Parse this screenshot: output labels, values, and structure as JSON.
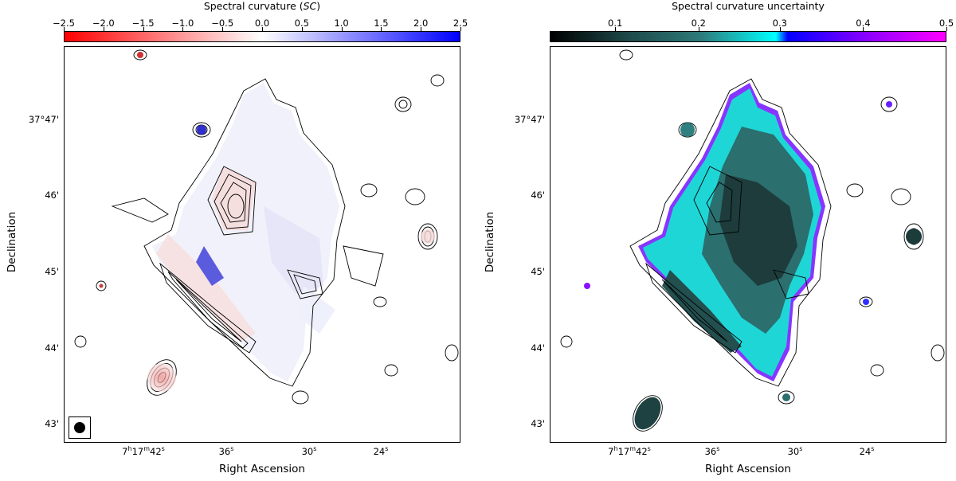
{
  "panels": [
    {
      "colorbar": {
        "title": "Spectral curvature (",
        "title_italic": "SC",
        "title_end": ")",
        "ticks": [
          "−2.5",
          "−2.0",
          "−1.5",
          "−1.0",
          "−0.5",
          "0.0",
          "0.5",
          "1.0",
          "1.5",
          "2.0",
          "2.5"
        ],
        "colormap": "bwr"
      },
      "x_ticks": [
        "7h17m42s",
        "36s",
        "30s",
        "24s"
      ],
      "y_ticks": [
        "37°47'",
        "46'",
        "45'",
        "44'",
        "43'"
      ],
      "xlabel": "Right Ascension",
      "ylabel": "Declination",
      "has_beam": true
    },
    {
      "colorbar": {
        "title": "Spectral curvature uncertainty",
        "ticks": [
          "0.1",
          "0.2",
          "0.3",
          "0.4",
          "0.5"
        ],
        "colormap": "cubehelix-cyan-magenta"
      },
      "x_ticks": [
        "7h17m42s",
        "36s",
        "30s",
        "24s"
      ],
      "y_ticks": [
        "37°47'",
        "46'",
        "45'",
        "44'",
        "43'"
      ],
      "xlabel": "Right Ascension",
      "ylabel": "Declination",
      "has_beam": false
    }
  ],
  "colors": {
    "red": "#ff0000",
    "blue": "#0000ff",
    "teal": "#2f6b6b",
    "cyan": "#00ffff",
    "magenta": "#ff00ff"
  }
}
